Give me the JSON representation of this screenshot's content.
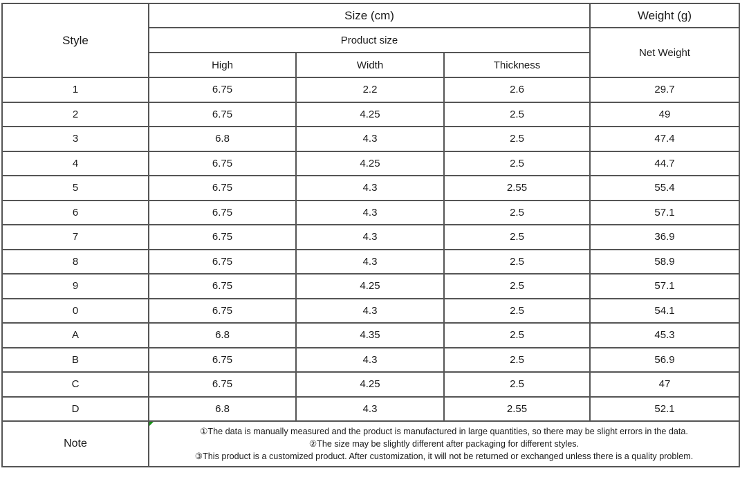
{
  "colors": {
    "border": "#555555",
    "text": "#1a1a1a",
    "background": "#ffffff",
    "comment_marker": "#189418"
  },
  "table": {
    "header": {
      "style_label": "Style",
      "size_group_label": "Size (cm)",
      "weight_group_label": "Weight (g)",
      "product_size_label": "Product size",
      "net_weight_label": "Net Weight",
      "columns": [
        "High",
        "Width",
        "Thickness"
      ]
    },
    "rows": [
      {
        "style": "1",
        "high": "6.75",
        "width": "2.2",
        "thickness": "2.6",
        "net_weight": "29.7"
      },
      {
        "style": "2",
        "high": "6.75",
        "width": "4.25",
        "thickness": "2.5",
        "net_weight": "49"
      },
      {
        "style": "3",
        "high": "6.8",
        "width": "4.3",
        "thickness": "2.5",
        "net_weight": "47.4"
      },
      {
        "style": "4",
        "high": "6.75",
        "width": "4.25",
        "thickness": "2.5",
        "net_weight": "44.7"
      },
      {
        "style": "5",
        "high": "6.75",
        "width": "4.3",
        "thickness": "2.55",
        "net_weight": "55.4"
      },
      {
        "style": "6",
        "high": "6.75",
        "width": "4.3",
        "thickness": "2.5",
        "net_weight": "57.1"
      },
      {
        "style": "7",
        "high": "6.75",
        "width": "4.3",
        "thickness": "2.5",
        "net_weight": "36.9"
      },
      {
        "style": "8",
        "high": "6.75",
        "width": "4.3",
        "thickness": "2.5",
        "net_weight": "58.9"
      },
      {
        "style": "9",
        "high": "6.75",
        "width": "4.25",
        "thickness": "2.5",
        "net_weight": "57.1"
      },
      {
        "style": "0",
        "high": "6.75",
        "width": "4.3",
        "thickness": "2.5",
        "net_weight": "54.1"
      },
      {
        "style": "A",
        "high": "6.8",
        "width": "4.35",
        "thickness": "2.5",
        "net_weight": "45.3"
      },
      {
        "style": "B",
        "high": "6.75",
        "width": "4.3",
        "thickness": "2.5",
        "net_weight": "56.9"
      },
      {
        "style": "C",
        "high": "6.75",
        "width": "4.25",
        "thickness": "2.5",
        "net_weight": "47"
      },
      {
        "style": "D",
        "high": "6.8",
        "width": "4.3",
        "thickness": "2.55",
        "net_weight": "52.1"
      }
    ],
    "note": {
      "label": "Note",
      "lines": [
        "①The data is manually measured and the product is manufactured in large quantities, so there may be slight errors in the data.",
        "②The size may be slightly different after packaging for different styles.",
        "③This product is a customized product. After customization, it will not be returned or exchanged unless there is a quality problem."
      ]
    }
  }
}
